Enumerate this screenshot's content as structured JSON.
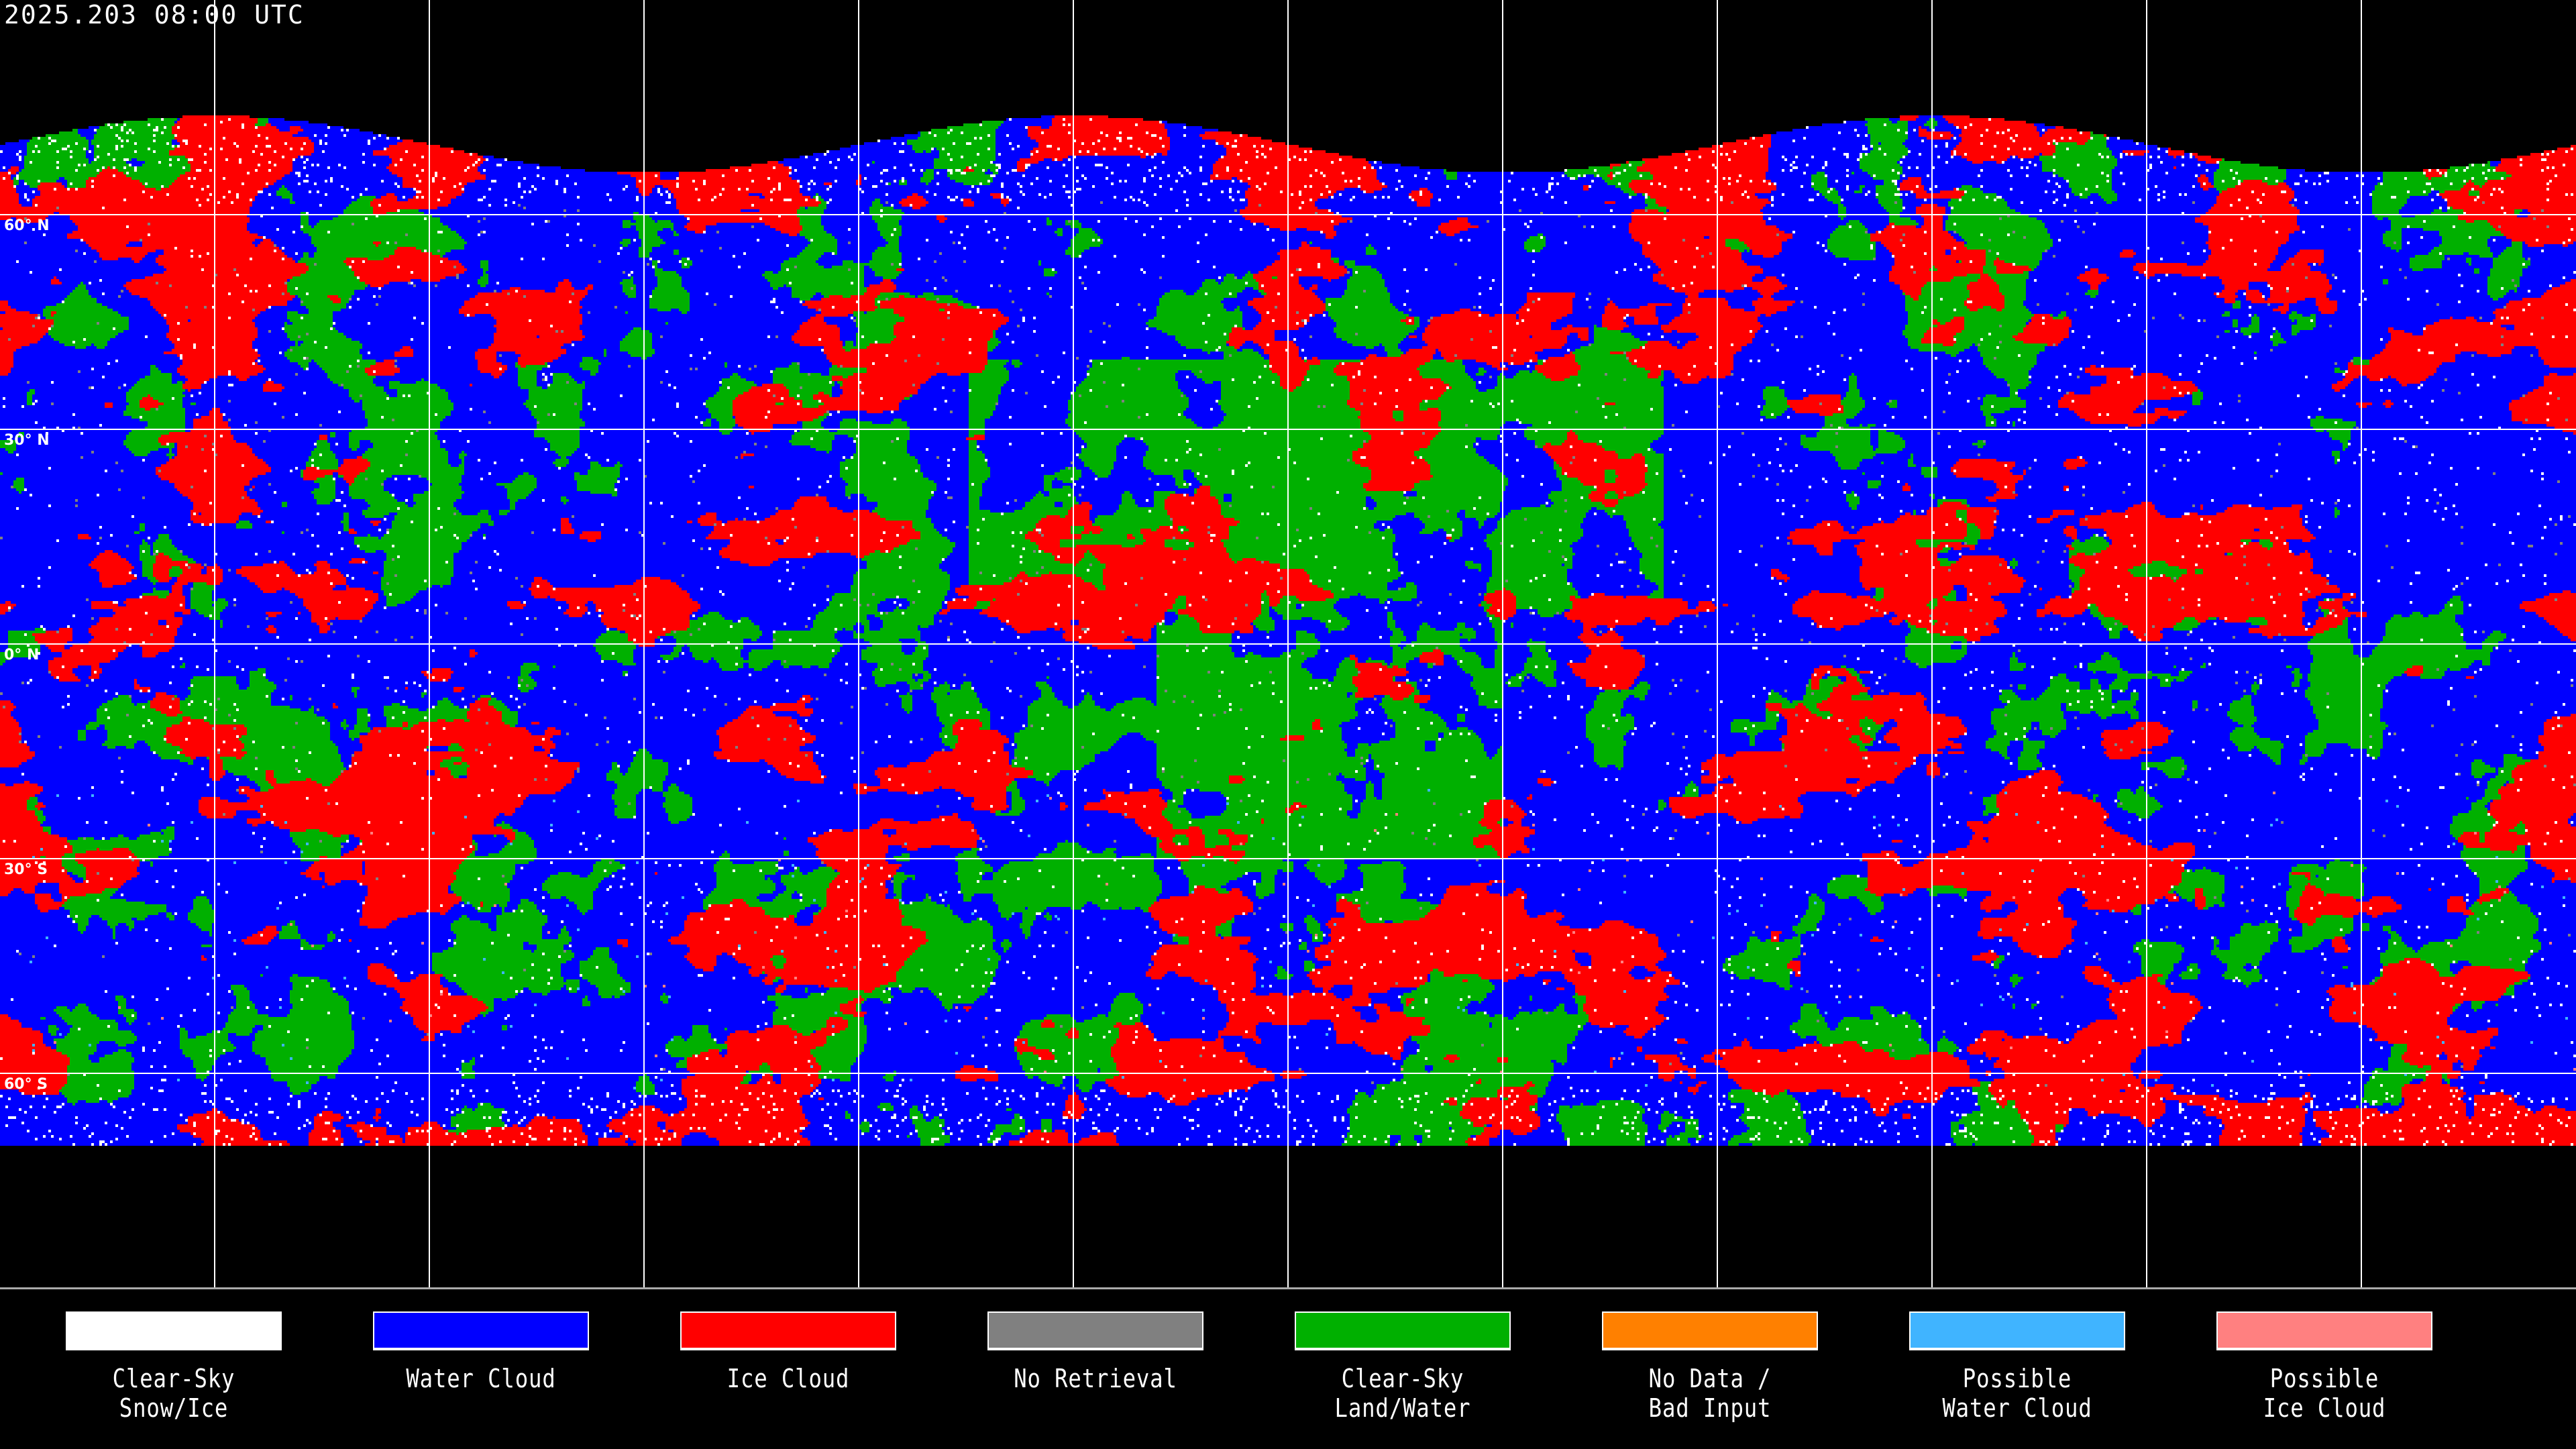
{
  "header": {
    "timestamp": "2025.203 08:00 UTC"
  },
  "map": {
    "projection": "equirectangular",
    "latitude_labels": [
      "60° N",
      "30° N",
      "0° N",
      "30° S",
      "60° S"
    ],
    "gridline_color": "#ffffff"
  },
  "legend": [
    {
      "line1": "Clear-Sky",
      "line2": "Snow/Ice",
      "color": "#ffffff"
    },
    {
      "line1": "Water Cloud",
      "line2": "",
      "color": "#0000ff"
    },
    {
      "line1": "Ice Cloud",
      "line2": "",
      "color": "#ff0000"
    },
    {
      "line1": "No Retrieval",
      "line2": "",
      "color": "#808080"
    },
    {
      "line1": "Clear-Sky",
      "line2": "Land/Water",
      "color": "#00b000"
    },
    {
      "line1": "No Data /",
      "line2": "Bad Input",
      "color": "#ff8000"
    },
    {
      "line1": "Possible",
      "line2": "Water Cloud",
      "color": "#40b4ff"
    },
    {
      "line1": "Possible",
      "line2": "Ice Cloud",
      "color": "#ff8080"
    }
  ]
}
